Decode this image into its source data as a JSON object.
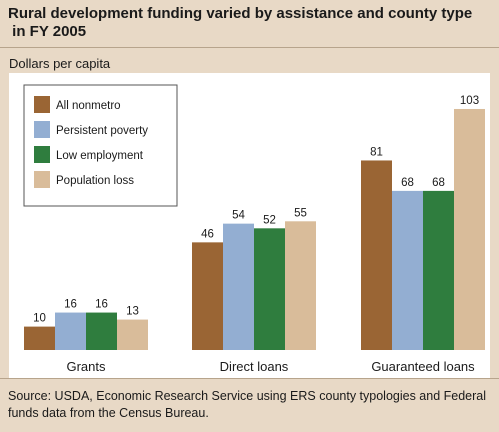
{
  "header": {
    "title_line1": "Rural development funding varied by assistance and county type",
    "title_line2": " in FY 2005"
  },
  "footer": {
    "source": "Source:  USDA, Economic Research Service using ERS county typologies and Federal funds data from the Census Bureau."
  },
  "chart_data": {
    "type": "bar",
    "title": "Rural development funding varied by assistance and county type in FY 2005",
    "ylabel": "Dollars per capita",
    "xlabel": "",
    "categories": [
      "Grants",
      "Direct loans",
      "Guaranteed loans"
    ],
    "series": [
      {
        "name": "All nonmetro",
        "color": "#9a6534",
        "values": [
          10,
          46,
          81
        ]
      },
      {
        "name": "Persistent poverty",
        "color": "#93aed2",
        "values": [
          16,
          54,
          68
        ]
      },
      {
        "name": "Low employment",
        "color": "#2f7d3e",
        "values": [
          16,
          52,
          68
        ]
      },
      {
        "name": "Population loss",
        "color": "#d9bc9a",
        "values": [
          13,
          55,
          103
        ]
      }
    ],
    "ylim": [
      0,
      110
    ],
    "grid": false,
    "legend_position": "top-left",
    "background": "#ffffff",
    "frame_color": "#e8d9c6"
  }
}
